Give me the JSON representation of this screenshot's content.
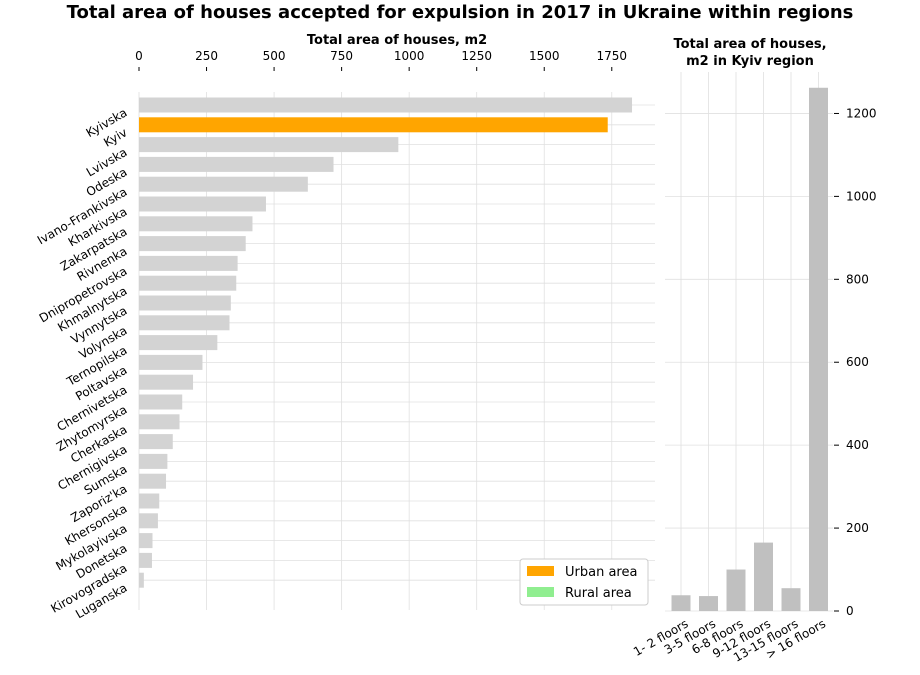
{
  "title": "Total area of houses accepted for expulsion in 2017 in Ukraine within regions",
  "colors": {
    "urban": "#ffa500",
    "rural": "#90ee90",
    "region_bar": "#d3d3d3",
    "kyiv_bar": "#c0c0c0",
    "grid": "#e0e0e0"
  },
  "chart_data": [
    {
      "type": "bar",
      "orientation": "horizontal",
      "xlabel": "Total area of houses, m2",
      "xlim": [
        0,
        1910
      ],
      "xticks": [
        0,
        250,
        500,
        750,
        1000,
        1250,
        1500,
        1750
      ],
      "grid": true,
      "categories": [
        "Kyivska",
        "Kyiv",
        "Lvivska",
        "Odeska",
        "Ivano-Frankivska",
        "Kharkivska",
        "Zakarpatska",
        "Rivnenka",
        "Dnipropetrovska",
        "Khmalnytska",
        "Vynnytska",
        "Volynska",
        "Ternopilska",
        "Poltavska",
        "Chernivetska",
        "Zhytomyrska",
        "Cherkaska",
        "Chernigivska",
        "Sumska",
        "Zaporiz'ka",
        "Khersonska",
        "Mykolayivska",
        "Donetska",
        "Kirovogradska",
        "Luganska"
      ],
      "values": [
        1825,
        1735,
        960,
        720,
        625,
        470,
        420,
        395,
        365,
        360,
        340,
        335,
        290,
        235,
        200,
        160,
        150,
        125,
        105,
        100,
        75,
        70,
        50,
        48,
        18
      ],
      "highlight_index": 1,
      "legend": {
        "placement": "bottom-right",
        "entries": [
          {
            "label": "Urban area",
            "color": "#ffa500"
          },
          {
            "label": "Rural area",
            "color": "#90ee90"
          }
        ]
      }
    },
    {
      "type": "bar",
      "title": "Total area of houses,\nm2 in Kyiv  region",
      "categories": [
        "1- 2 floors",
        "3-5 floors",
        "6-8 floors",
        "9-12 floors",
        "13-15 floors",
        "> 16 floors"
      ],
      "values": [
        38,
        36,
        100,
        165,
        55,
        1262
      ],
      "ylim": [
        0,
        1300
      ],
      "yticks": [
        0,
        200,
        400,
        600,
        800,
        1000,
        1200
      ],
      "grid": true
    }
  ]
}
